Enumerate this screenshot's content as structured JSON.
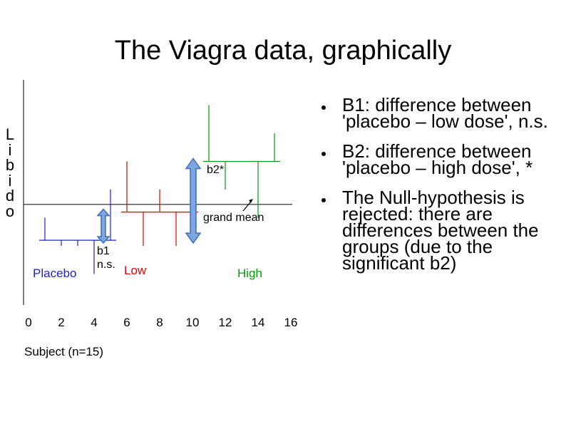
{
  "slide": {
    "title": "The Viagra data, graphically"
  },
  "bullets": [
    "B1: difference between 'placebo – low dose', n.s.",
    "B2: difference between 'placebo – high dose', *",
    "The Null-hypothesis is rejected: there are differences between the groups (due to the significant b2)"
  ],
  "chart_data": {
    "type": "scatter",
    "xlabel": "Subject (n=15)",
    "ylabel": "Libido",
    "xlim": [
      0,
      16
    ],
    "xticks": [
      0,
      2,
      4,
      6,
      8,
      10,
      12,
      14,
      16
    ],
    "ylim": [
      0,
      8
    ],
    "grand_mean": 3.47,
    "groups": [
      {
        "name": "Placebo",
        "color": "#1f1fd0",
        "x": [
          1,
          2,
          3,
          4,
          5
        ],
        "values": [
          3,
          2,
          2,
          1,
          4
        ],
        "mean": 2.2
      },
      {
        "name": "Low",
        "color": "#e00000",
        "x": [
          6,
          7,
          8,
          9,
          10
        ],
        "values": [
          5,
          2,
          4,
          2,
          3
        ],
        "mean": 3.2
      },
      {
        "name": "High",
        "color": "#00a000",
        "x": [
          11,
          12,
          13,
          14,
          15
        ],
        "values": [
          7,
          4,
          5,
          3,
          6
        ],
        "mean": 5.0
      }
    ],
    "annotations": {
      "b1": "b1",
      "b1_sig": "n.s.",
      "b2": "b2*",
      "grand_mean_label": "grand mean"
    },
    "colors": {
      "arrow_fill": "#7ea6e0",
      "arrow_stroke": "#3d6fb5",
      "axis": "#000000"
    }
  }
}
